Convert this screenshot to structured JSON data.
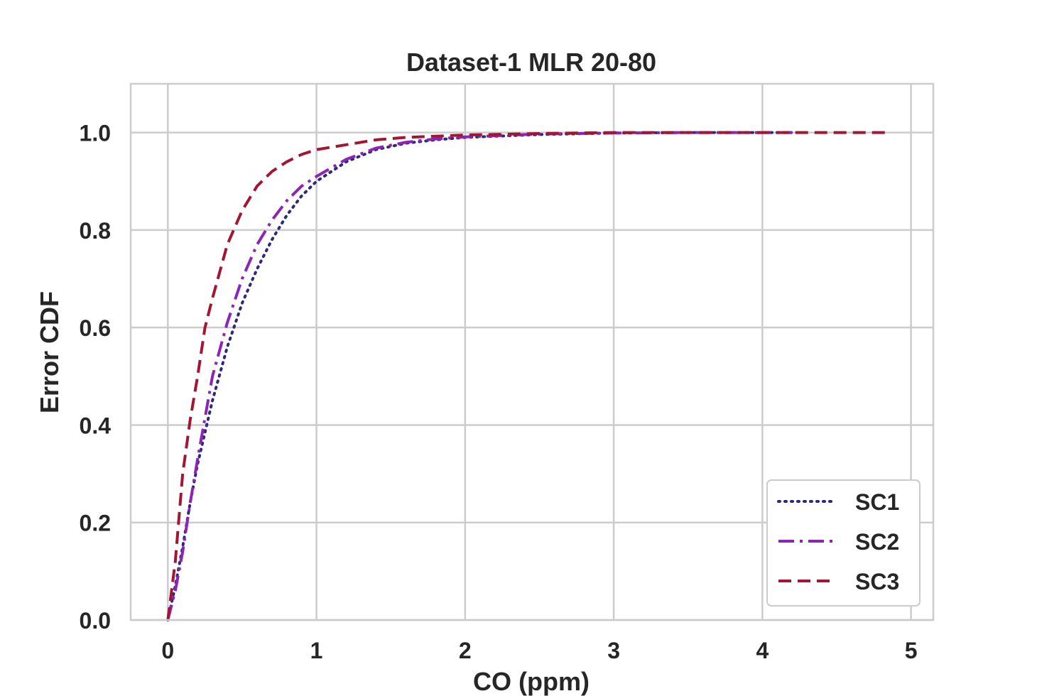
{
  "chart_data": {
    "type": "line",
    "title": "Dataset-1 MLR 20-80",
    "xlabel": "CO (ppm)",
    "ylabel": "Error CDF",
    "xlim": [
      -0.25,
      5.15
    ],
    "ylim": [
      0.0,
      1.1
    ],
    "xticks": [
      0,
      1,
      2,
      3,
      4,
      5
    ],
    "yticks": [
      0.0,
      0.2,
      0.4,
      0.6,
      0.8,
      1.0
    ],
    "xtick_labels": [
      "0",
      "1",
      "2",
      "3",
      "4",
      "5"
    ],
    "ytick_labels": [
      "0.0",
      "0.2",
      "0.4",
      "0.6",
      "0.8",
      "1.0"
    ],
    "grid": true,
    "legend_position": "bottom-right",
    "series": [
      {
        "name": "SC1",
        "color": "#2e2a7a",
        "style": "dotted",
        "points": [
          [
            0,
            0
          ],
          [
            0.05,
            0.07
          ],
          [
            0.1,
            0.15
          ],
          [
            0.15,
            0.24
          ],
          [
            0.2,
            0.32
          ],
          [
            0.3,
            0.45
          ],
          [
            0.4,
            0.56
          ],
          [
            0.5,
            0.65
          ],
          [
            0.6,
            0.72
          ],
          [
            0.7,
            0.78
          ],
          [
            0.8,
            0.83
          ],
          [
            0.9,
            0.87
          ],
          [
            1.0,
            0.9
          ],
          [
            1.2,
            0.94
          ],
          [
            1.4,
            0.965
          ],
          [
            1.6,
            0.978
          ],
          [
            1.8,
            0.985
          ],
          [
            2.0,
            0.99
          ],
          [
            2.5,
            0.996
          ],
          [
            3.0,
            0.999
          ],
          [
            3.5,
            1.0
          ],
          [
            4.2,
            1.0
          ]
        ]
      },
      {
        "name": "SC2",
        "color": "#8e24b5",
        "style": "dashdot",
        "points": [
          [
            0,
            0
          ],
          [
            0.05,
            0.06
          ],
          [
            0.1,
            0.14
          ],
          [
            0.15,
            0.24
          ],
          [
            0.2,
            0.33
          ],
          [
            0.3,
            0.5
          ],
          [
            0.4,
            0.61
          ],
          [
            0.5,
            0.7
          ],
          [
            0.6,
            0.77
          ],
          [
            0.7,
            0.82
          ],
          [
            0.8,
            0.86
          ],
          [
            0.9,
            0.89
          ],
          [
            1.0,
            0.91
          ],
          [
            1.2,
            0.945
          ],
          [
            1.4,
            0.968
          ],
          [
            1.6,
            0.98
          ],
          [
            1.8,
            0.987
          ],
          [
            2.0,
            0.991
          ],
          [
            2.5,
            0.997
          ],
          [
            3.0,
            0.999
          ],
          [
            3.5,
            1.0
          ],
          [
            4.2,
            1.0
          ]
        ]
      },
      {
        "name": "SC3",
        "color": "#a31633",
        "style": "dashed",
        "points": [
          [
            0,
            0
          ],
          [
            0.05,
            0.12
          ],
          [
            0.1,
            0.3
          ],
          [
            0.15,
            0.41
          ],
          [
            0.2,
            0.5
          ],
          [
            0.25,
            0.6
          ],
          [
            0.3,
            0.66
          ],
          [
            0.4,
            0.77
          ],
          [
            0.5,
            0.84
          ],
          [
            0.6,
            0.89
          ],
          [
            0.7,
            0.92
          ],
          [
            0.8,
            0.94
          ],
          [
            0.9,
            0.955
          ],
          [
            1.0,
            0.965
          ],
          [
            1.2,
            0.975
          ],
          [
            1.4,
            0.985
          ],
          [
            1.6,
            0.99
          ],
          [
            2.0,
            0.995
          ],
          [
            2.5,
            0.998
          ],
          [
            3.0,
            1.0
          ],
          [
            4.85,
            1.0
          ]
        ]
      }
    ]
  }
}
